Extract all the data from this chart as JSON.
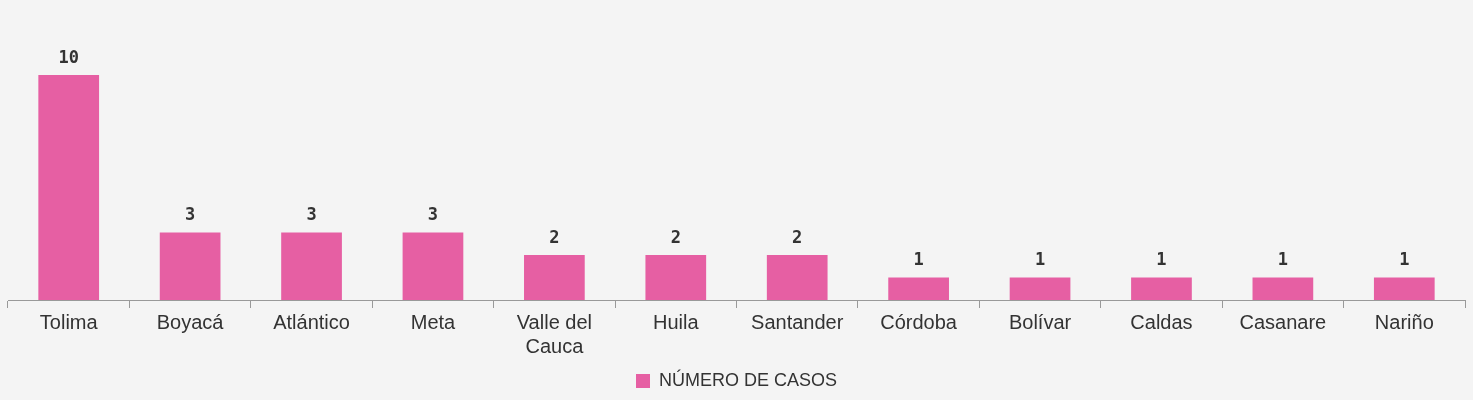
{
  "chart_data": {
    "type": "bar",
    "categories": [
      "Tolima",
      "Boyacá",
      "Atlántico",
      "Meta",
      "Valle del Cauca",
      "Huila",
      "Santander",
      "Córdoba",
      "Bolívar",
      "Caldas",
      "Casanare",
      "Nariño"
    ],
    "series": [
      {
        "name": "NÚMERO DE CASOS",
        "color": "#e65fa3",
        "values": [
          10,
          3,
          3,
          3,
          2,
          2,
          2,
          1,
          1,
          1,
          1,
          1
        ]
      }
    ],
    "data_labels": true,
    "legend": "bottom",
    "grid": false
  }
}
